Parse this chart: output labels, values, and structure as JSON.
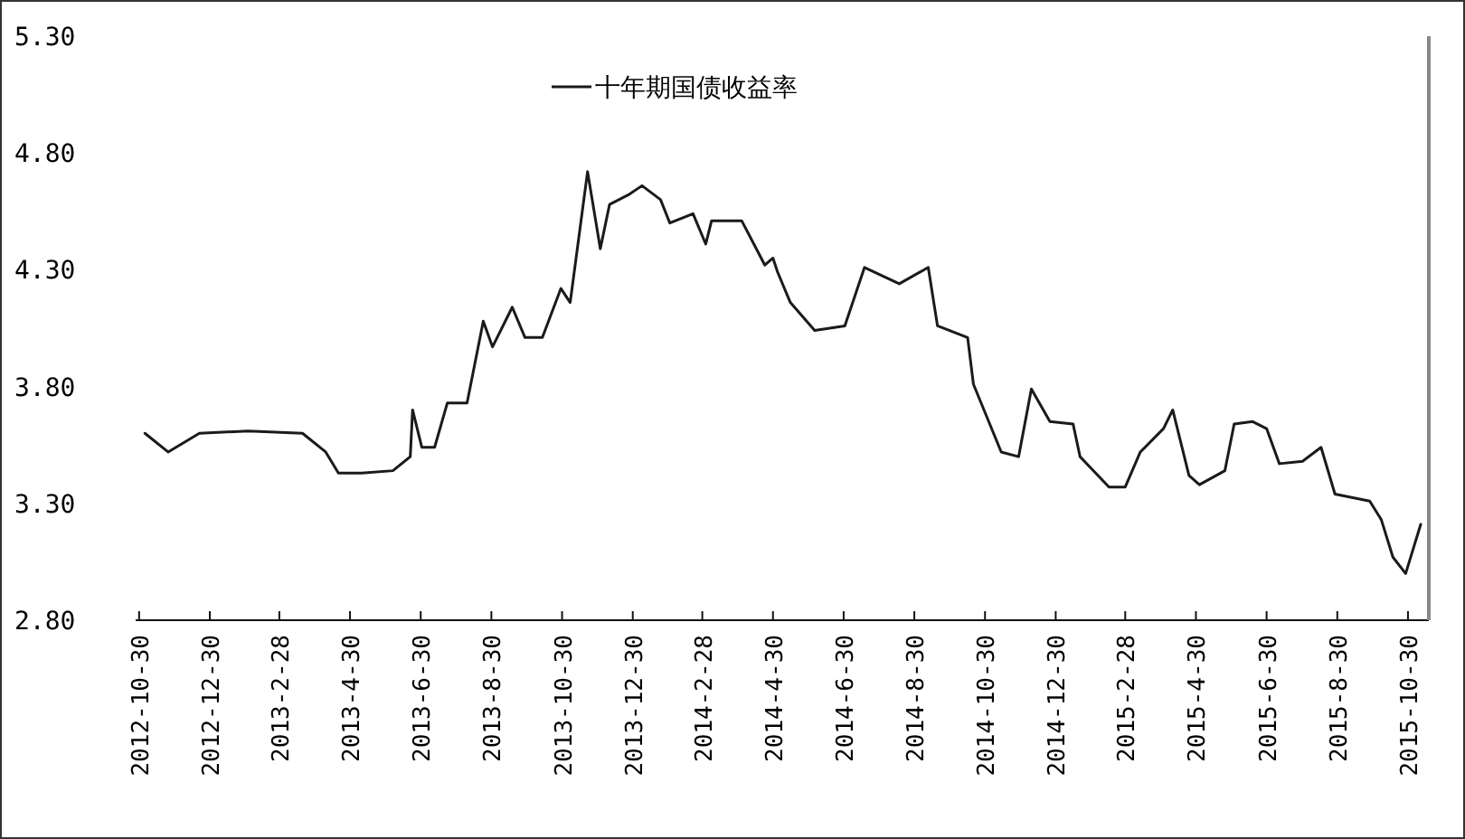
{
  "chart_data": {
    "type": "line",
    "legend": "top",
    "grid": false,
    "marker": "none",
    "line_style": "solid",
    "xlim": [
      "2012-10-27",
      "2015-11-17"
    ],
    "ylim": [
      2.8,
      5.3
    ],
    "yticks": [
      {
        "value": 2.8,
        "label": "2.80"
      },
      {
        "value": 3.3,
        "label": "3.30"
      },
      {
        "value": 3.8,
        "label": "3.80"
      },
      {
        "value": 4.3,
        "label": "4.30"
      },
      {
        "value": 4.8,
        "label": "4.80"
      },
      {
        "value": 5.3,
        "label": "5.30"
      }
    ],
    "xticks": [
      {
        "value": "2012-10-30",
        "label": "2012-10-30"
      },
      {
        "value": "2012-12-30",
        "label": "2012-12-30"
      },
      {
        "value": "2013-02-28",
        "label": "2013-2-28"
      },
      {
        "value": "2013-04-30",
        "label": "2013-4-30"
      },
      {
        "value": "2013-06-30",
        "label": "2013-6-30"
      },
      {
        "value": "2013-08-30",
        "label": "2013-8-30"
      },
      {
        "value": "2013-10-30",
        "label": "2013-10-30"
      },
      {
        "value": "2013-12-30",
        "label": "2013-12-30"
      },
      {
        "value": "2014-02-28",
        "label": "2014-2-28"
      },
      {
        "value": "2014-04-30",
        "label": "2014-4-30"
      },
      {
        "value": "2014-06-30",
        "label": "2014-6-30"
      },
      {
        "value": "2014-08-30",
        "label": "2014-8-30"
      },
      {
        "value": "2014-10-30",
        "label": "2014-10-30"
      },
      {
        "value": "2014-12-30",
        "label": "2014-12-30"
      },
      {
        "value": "2015-02-28",
        "label": "2015-2-28"
      },
      {
        "value": "2015-04-30",
        "label": "2015-4-30"
      },
      {
        "value": "2015-06-30",
        "label": "2015-6-30"
      },
      {
        "value": "2015-08-30",
        "label": "2015-8-30"
      },
      {
        "value": "2015-10-30",
        "label": "2015-10-30"
      }
    ],
    "x": [
      "2012-11-04",
      "2012-11-24",
      "2012-12-21",
      "2013-02-01",
      "2013-03-20",
      "2013-04-09",
      "2013-04-20",
      "2013-05-10",
      "2013-06-06",
      "2013-06-21",
      "2013-06-23",
      "2013-07-01",
      "2013-07-12",
      "2013-07-23",
      "2013-08-09",
      "2013-08-23",
      "2013-08-31",
      "2013-09-17",
      "2013-09-28",
      "2013-10-13",
      "2013-10-29",
      "2013-11-06",
      "2013-11-21",
      "2013-12-02",
      "2013-12-10",
      "2013-12-26",
      "2014-01-07",
      "2014-01-23",
      "2014-01-31",
      "2014-02-20",
      "2014-03-03",
      "2014-03-08",
      "2014-04-03",
      "2014-04-23",
      "2014-04-30",
      "2014-05-04",
      "2014-05-15",
      "2014-06-05",
      "2014-07-01",
      "2014-07-18",
      "2014-08-17",
      "2014-09-11",
      "2014-09-19",
      "2014-10-15",
      "2014-10-20",
      "2014-11-13",
      "2014-11-28",
      "2014-12-09",
      "2014-12-25",
      "2015-01-14",
      "2015-01-20",
      "2015-02-14",
      "2015-02-28",
      "2015-03-13",
      "2015-04-02",
      "2015-04-10",
      "2015-04-24",
      "2015-05-03",
      "2015-05-25",
      "2015-06-02",
      "2015-06-18",
      "2015-06-30",
      "2015-07-11",
      "2015-07-31",
      "2015-08-16",
      "2015-08-28",
      "2015-09-27",
      "2015-10-07",
      "2015-10-17",
      "2015-10-28",
      "2015-11-10"
    ],
    "series": [
      {
        "name": "十年期国债收益率",
        "color": "#1a1a1a",
        "values": [
          3.6,
          3.52,
          3.6,
          3.61,
          3.6,
          3.52,
          3.43,
          3.43,
          3.44,
          3.5,
          3.7,
          3.54,
          3.54,
          3.73,
          3.73,
          4.08,
          3.97,
          4.14,
          4.01,
          4.01,
          4.22,
          4.16,
          4.72,
          4.39,
          4.58,
          4.62,
          4.66,
          4.6,
          4.5,
          4.54,
          4.41,
          4.51,
          4.51,
          4.32,
          4.35,
          4.29,
          4.16,
          4.04,
          4.06,
          4.31,
          4.24,
          4.31,
          4.06,
          4.01,
          3.81,
          3.52,
          3.5,
          3.79,
          3.65,
          3.64,
          3.5,
          3.37,
          3.37,
          3.52,
          3.62,
          3.7,
          3.42,
          3.38,
          3.44,
          3.64,
          3.65,
          3.62,
          3.47,
          3.48,
          3.54,
          3.34,
          3.31,
          3.23,
          3.07,
          3.0,
          3.21
        ]
      }
    ]
  }
}
